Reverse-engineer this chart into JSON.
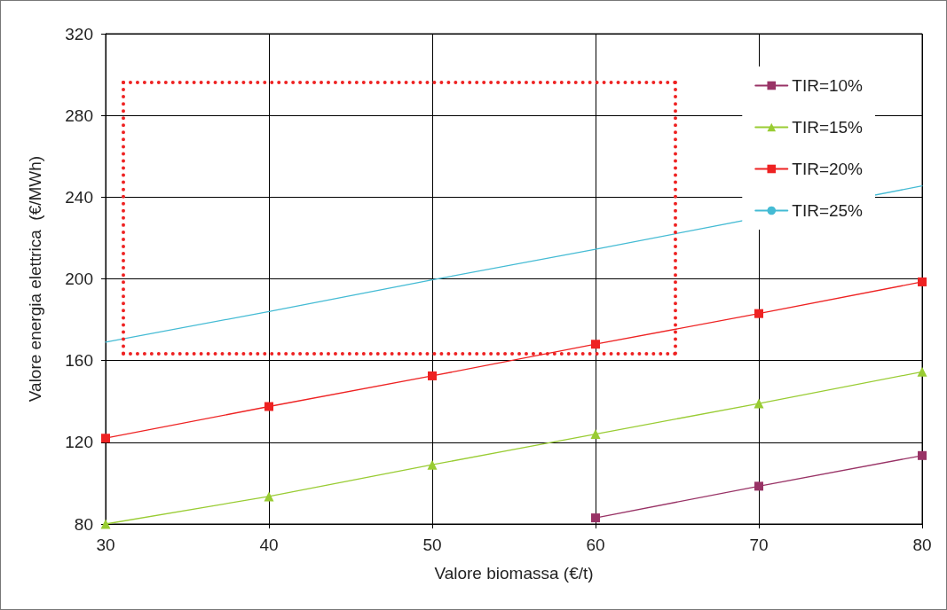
{
  "chart_data": {
    "type": "line",
    "xlabel": "Valore biomassa (€/t)",
    "ylabel": "Valore energia elettrica  (€/MWh)",
    "series": [
      {
        "name": "TIR=10%",
        "color": "#993366",
        "marker": "square",
        "x": [
          60,
          70,
          80
        ],
        "values": [
          83,
          98.5,
          113.5
        ]
      },
      {
        "name": "TIR=15%",
        "color": "#99cc33",
        "marker": "triangle",
        "x": [
          30,
          40,
          50,
          60,
          70,
          80
        ],
        "values": [
          80,
          93.5,
          109,
          124,
          139,
          154.5
        ]
      },
      {
        "name": "TIR=20%",
        "color": "#ee2222",
        "marker": "square",
        "x": [
          30,
          40,
          50,
          60,
          70,
          80
        ],
        "values": [
          122,
          137.5,
          152.5,
          168,
          183,
          198.5
        ]
      },
      {
        "name": "TIR=25%",
        "color": "#44bbd4",
        "marker": "none",
        "x": [
          30,
          40,
          50,
          60,
          70,
          80
        ],
        "values": [
          169,
          184,
          199.5,
          214.5,
          null,
          245.5
        ]
      }
    ],
    "xlim": [
      30,
      80
    ],
    "xticks": [
      30,
      40,
      50,
      60,
      70,
      80
    ],
    "ylim": [
      80,
      320
    ],
    "yticks": [
      80,
      120,
      160,
      200,
      240,
      280,
      320
    ],
    "grid": true,
    "legend": "top right",
    "line_style": "solid"
  }
}
